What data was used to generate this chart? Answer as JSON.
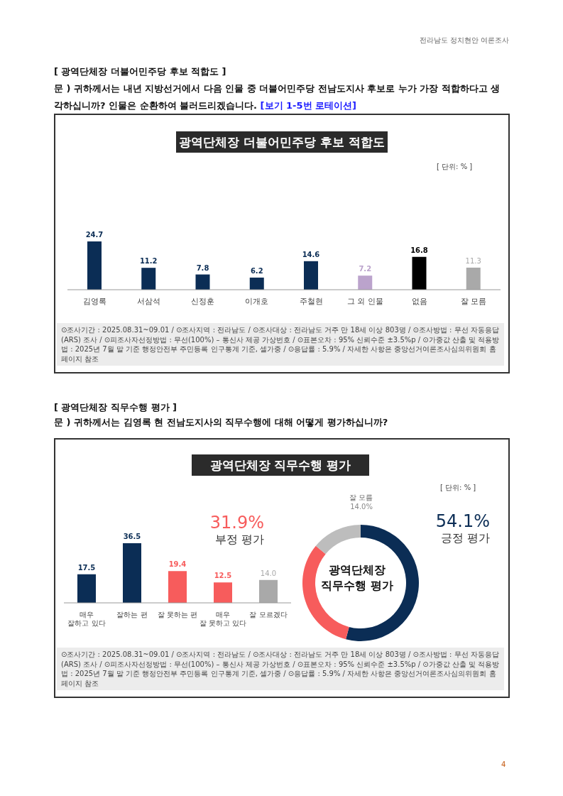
{
  "chart_data": [
    {
      "type": "bar",
      "title": "광역단체장 더불어민주당 후보 적합도",
      "categories": [
        "김영록",
        "서삼석",
        "신정훈",
        "이개호",
        "주철현",
        "그 외 인물",
        "없음",
        "잘 모름"
      ],
      "values": [
        24.7,
        11.2,
        7.8,
        6.2,
        14.6,
        7.2,
        16.8,
        11.3
      ],
      "colors": [
        "#0b2d55",
        "#0b2d55",
        "#0b2d55",
        "#0b2d55",
        "#0b2d55",
        "#bba3cc",
        "#000000",
        "#a9a9a9"
      ],
      "data_labels": true,
      "annotations": [
        "전라남도 정치현안 여론조사",
        "[ 광역단체장 더불어민주당 후보 적합도 ]",
        "문 )  귀하께서는 내년 지방선거에서 다음 인물 중 더불어민주당 전남도지사 후보로 누가 가장 적합하다고 생각하십니까? 인물은 순환하여 불러드리겠습니다.",
        "[보기 1-5번 로테이션]",
        "[ 단위: % ]",
        "⊙조사기간 : 2025.08.31~09.01 / ⊙조사지역 : 전라남도 / ⊙조사대상 : 전라남도 거주 만 18세 이상 803명 / ⊙조사방법 : 무선 자동응답(ARS) 조사 / ⊙피조사자선정방법 : 무선(100%) – 통신사 제공 가상번호 / ⊙표본오차 : 95% 신뢰수준 ±3.5%p / ⊙가중값 산출 및 적용방법 : 2025년 7월 말 기준 행정안전부 주민등록 인구통계 기준, 셀가중 / ⊙응답률 : 5.9% / 자세한 사항은 중앙선거여론조사심의위원회 홈페이지 참조"
      ]
    },
    {
      "type": "bar",
      "title": "광역단체장 직무수행 평가",
      "categories": [
        "매우\n잘하고 있다",
        "잘하는 편",
        "잘 못하는 편",
        "매우\n잘 못하고 있다",
        "잘 모르겠다"
      ],
      "values": [
        17.5,
        36.5,
        19.4,
        12.5,
        14.0
      ],
      "colors": [
        "#0b2d55",
        "#0b2d55",
        "#f75c5c",
        "#f75c5c",
        "#a9a9a9"
      ],
      "value_labels": [
        "17.5",
        "36.5",
        "19.4",
        "12.5",
        "14.0"
      ],
      "annotations": [
        "[ 광역단체장 직무수행 평가 ]",
        "문 )  귀하께서는 김영록 현 전남도지사의 직무수행에 대해 어떻게 평가하십니까?",
        "[ 단위: % ]",
        "⊙조사기간 : 2025.08.31~09.01 / ⊙조사지역 : 전라남도 / ⊙조사대상 : 전라남도 거주 만 18세 이상 803명 / ⊙조사방법 : 무선 자동응답(ARS) 조사 / ⊙피조사자선정방법 : 무선(100%) – 통신사 제공 가상번호 / ⊙표본오차 : 95% 신뢰수준 ±3.5%p / ⊙가중값 산출 및 적용방법 : 2025년 7월 말 기준 행정안전부 주민등록 인구통계 기준, 셀가중 / ⊙응답률 : 5.9% / 자세한 사항은 중앙선거여론조사심의위원회 홈페이지 참조",
        "4"
      ]
    },
    {
      "type": "donut",
      "categories": [
        "긍정 평가",
        "부정 평가",
        "잘 모름"
      ],
      "values": [
        54.1,
        31.9,
        14.0
      ],
      "colors": [
        "#0b2d55",
        "#f75c5c",
        "#bdbdbd"
      ],
      "value_labels": [
        "54.1%",
        "31.9%",
        "14.0%"
      ],
      "annotations": [
        "광역단체장\n직무수행 평가"
      ]
    }
  ]
}
